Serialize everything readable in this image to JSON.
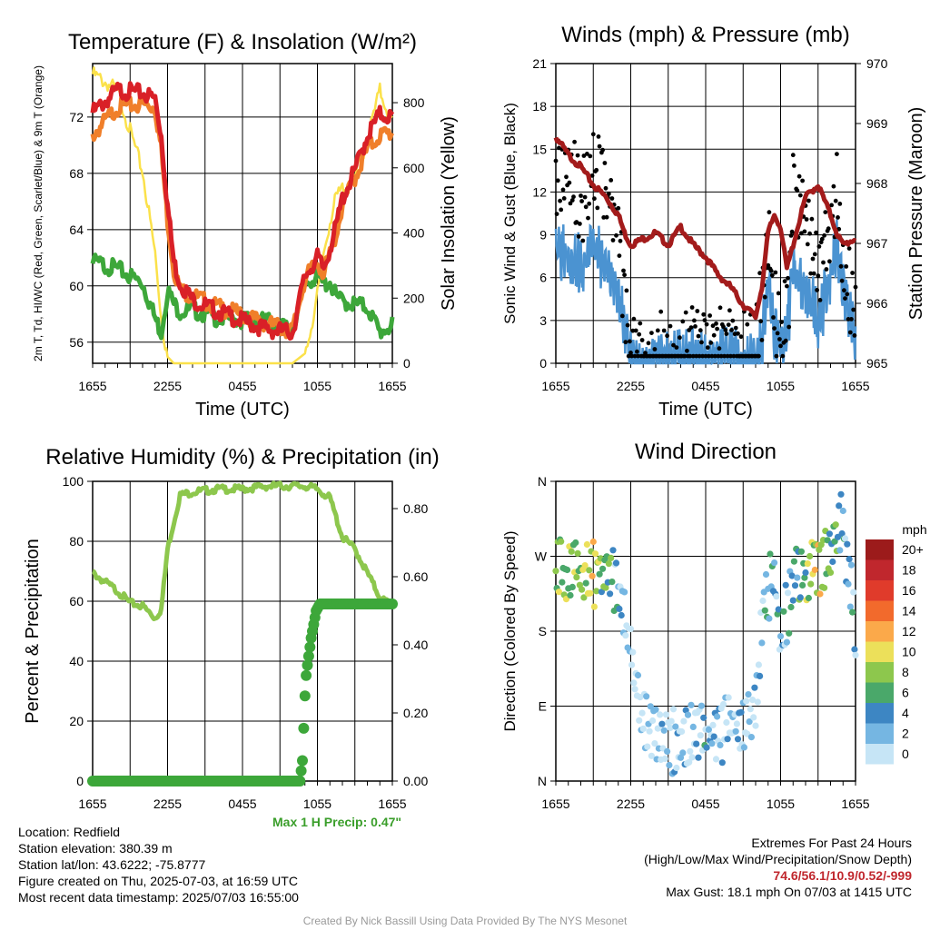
{
  "chart_data": [
    {
      "type": "line",
      "id": "temperature",
      "title": "Temperature (F) & Insolation (W/m²)",
      "xlabel": "Time (UTC)",
      "ylabel_left": "2m T, Td, HI/WC (Red, Green, Scarlet/Blue) & 9m T (Orange)",
      "ylabel_right": "Solar Insolation (Yellow)",
      "x_ticks": [
        "1655",
        "2255",
        "0455",
        "1055",
        "1655"
      ],
      "ylim_left": [
        54.5,
        75.8
      ],
      "yticks_left": [
        56,
        60,
        64,
        68,
        72
      ],
      "ylim_right": [
        0,
        920
      ],
      "yticks_right": [
        0,
        200,
        400,
        600,
        800
      ],
      "x_hours": [
        0,
        2,
        4,
        5,
        5.5,
        6,
        6.5,
        7,
        8,
        10,
        12,
        14,
        16,
        17,
        18,
        18.5,
        19,
        19.5,
        20,
        21,
        22,
        23,
        24
      ],
      "series": [
        {
          "name": "2m T",
          "color": "#d92027",
          "axis": "left",
          "values": [
            72.6,
            74.2,
            74.0,
            73.6,
            71.0,
            66.0,
            62.0,
            60.5,
            59.3,
            58.5,
            57.8,
            57.2,
            57.0,
            61.0,
            62.3,
            61.5,
            63.0,
            64.5,
            66.5,
            68.5,
            71.0,
            72.5,
            72.3
          ]
        },
        {
          "name": "9m T",
          "color": "#f07f2a",
          "axis": "left",
          "values": [
            71.0,
            73.0,
            73.2,
            73.0,
            70.0,
            65.0,
            61.5,
            60.0,
            59.6,
            58.8,
            58.2,
            57.6,
            57.1,
            60.8,
            62.0,
            61.2,
            62.5,
            64.0,
            66.0,
            68.0,
            70.0,
            71.0,
            71.2
          ]
        },
        {
          "name": "Td",
          "color": "#3da73a",
          "axis": "left",
          "values": [
            62.0,
            61.5,
            60.5,
            58.0,
            57.0,
            60.0,
            59.0,
            58.5,
            58.6,
            58.0,
            57.9,
            57.8,
            57.2,
            60.5,
            61.0,
            60.4,
            60.6,
            59.5,
            59.2,
            59.0,
            58.8,
            57.0,
            57.5
          ]
        },
        {
          "name": "Solar Insolation",
          "color": "#fbe14a",
          "axis": "right",
          "values": [
            900,
            850,
            600,
            350,
            150,
            20,
            0,
            0,
            0,
            0,
            0,
            0,
            0,
            30,
            220,
            350,
            450,
            520,
            550,
            580,
            700,
            850,
            750
          ]
        }
      ]
    },
    {
      "type": "scatter",
      "id": "winds",
      "title": "Winds (mph) & Pressure (mb)",
      "xlabel": "Time (UTC)",
      "ylabel_left": "Sonic Wind & Gust (Blue, Black)",
      "ylabel_right": "Station Pressure (Maroon)",
      "x_ticks": [
        "1655",
        "2255",
        "0455",
        "1055",
        "1655"
      ],
      "ylim_left": [
        0,
        21
      ],
      "yticks_left": [
        0,
        3,
        6,
        9,
        12,
        15,
        18,
        21
      ],
      "ylim_right": [
        965,
        970
      ],
      "yticks_right": [
        965,
        966,
        967,
        968,
        969,
        970
      ],
      "x_hours": [
        0,
        1,
        2,
        3,
        4,
        5,
        5.5,
        6,
        7,
        8,
        9,
        10,
        11,
        12,
        13,
        14,
        15,
        16,
        16.5,
        17,
        17.5,
        18,
        18.5,
        19,
        20,
        21,
        22,
        22.5,
        23,
        24
      ],
      "series": [
        {
          "name": "Sonic Wind",
          "color": "#4b93d1",
          "axis": "left",
          "style": "line",
          "values": [
            8.5,
            9.0,
            8.0,
            9.5,
            7.5,
            6.0,
            3.5,
            1.5,
            1.0,
            0.8,
            1.2,
            1.5,
            1.8,
            1.2,
            1.4,
            1.6,
            1.0,
            1.5,
            2.5,
            7.0,
            3.0,
            2.5,
            2.8,
            8.0,
            6.5,
            4.0,
            7.0,
            9.0,
            6.0,
            3.0
          ]
        },
        {
          "name": "Gust",
          "color": "#000000",
          "axis": "left",
          "style": "points",
          "values": [
            14.0,
            16.5,
            13.0,
            15.0,
            13.5,
            11.0,
            5.0,
            2.0,
            1.5,
            1.8,
            2.5,
            2.2,
            2.8,
            1.8,
            2.5,
            2.6,
            2.0,
            2.8,
            6.0,
            11.5,
            5.5,
            4.0,
            4.5,
            13.0,
            11.0,
            7.0,
            11.5,
            14.5,
            8.0,
            6.0
          ]
        },
        {
          "name": "Station Pressure",
          "color": "#a31b1b",
          "axis": "right",
          "style": "line",
          "values": [
            968.8,
            968.5,
            968.3,
            968.0,
            967.8,
            967.5,
            967.2,
            967.0,
            967.1,
            967.2,
            967.0,
            967.3,
            967.0,
            966.8,
            966.5,
            966.3,
            966.0,
            965.8,
            966.3,
            967.2,
            967.5,
            967.3,
            966.6,
            967.0,
            967.8,
            968.0,
            967.5,
            967.2,
            967.0,
            967.1
          ]
        }
      ]
    },
    {
      "type": "line",
      "id": "humidity",
      "title": "Relative Humidity (%) & Precipitation (in)",
      "xlabel": "",
      "ylabel_left": "Percent & Precipitation",
      "x_ticks": [
        "1655",
        "2255",
        "0455",
        "1055",
        "1655"
      ],
      "ylim_left": [
        0,
        100
      ],
      "yticks_left": [
        0,
        20,
        40,
        60,
        80,
        100
      ],
      "ylim_right": [
        0,
        0.88
      ],
      "yticks_right": [
        "0.00",
        "0.20",
        "0.40",
        "0.60",
        "0.80"
      ],
      "x_hours": [
        0,
        1,
        2,
        3,
        4,
        5,
        5.5,
        6,
        7,
        8,
        10,
        12,
        14,
        16,
        17,
        18,
        19,
        20,
        21,
        22,
        23,
        24
      ],
      "series": [
        {
          "name": "Relative Humidity",
          "color": "#8dc74d",
          "axis": "left",
          "values": [
            70,
            67,
            64,
            60,
            59,
            55,
            58,
            78,
            96,
            97,
            98,
            98,
            99,
            99,
            99,
            98,
            95,
            82,
            78,
            70,
            62,
            59
          ]
        },
        {
          "name": "Precipitation",
          "color": "#3da73a",
          "axis": "right",
          "precip_x": [
            0,
            2,
            4,
            6,
            8,
            10,
            12,
            14,
            16.6,
            16.8,
            17.0,
            17.1,
            17.2,
            17.35,
            17.5,
            17.7,
            17.9,
            18.2,
            20,
            22,
            24
          ],
          "precip_y": [
            0,
            0,
            0,
            0,
            0,
            0,
            0,
            0,
            0,
            0.06,
            0.25,
            0.31,
            0.34,
            0.38,
            0.42,
            0.46,
            0.5,
            0.52,
            0.52,
            0.52,
            0.52
          ]
        }
      ],
      "annotation": "Max 1 H Precip: 0.47\""
    },
    {
      "type": "scatter",
      "id": "direction",
      "title": "Wind Direction",
      "ylabel_left": "Direction (Colored By Speed)",
      "x_ticks": [
        "1655",
        "2255",
        "0455",
        "1055",
        "1655"
      ],
      "ylim_left": [
        0,
        360
      ],
      "y_tick_labels": [
        "N",
        "E",
        "S",
        "W",
        "N"
      ],
      "colorbar": {
        "unit": "mph",
        "labels": [
          "20+",
          "18",
          "16",
          "14",
          "12",
          "10",
          "8",
          "6",
          "4",
          "2",
          "0"
        ],
        "colors": [
          "#9c1b1b",
          "#c0272d",
          "#e03b2b",
          "#f26a2c",
          "#fba94a",
          "#ece05a",
          "#8dc74d",
          "#4aa86a",
          "#3d86c3",
          "#75b6e2",
          "#c6e5f6"
        ]
      },
      "x_hours": [
        0,
        1,
        2,
        3,
        4,
        4.5,
        5,
        5.5,
        6,
        6.5,
        7,
        8,
        9,
        10,
        11,
        12,
        13,
        14,
        15,
        16,
        16.5,
        17,
        17.5,
        18,
        19,
        20,
        21,
        22,
        23,
        24
      ],
      "directions": [
        270,
        272,
        275,
        268,
        270,
        262,
        240,
        210,
        170,
        130,
        90,
        70,
        65,
        75,
        80,
        72,
        78,
        82,
        88,
        110,
        200,
        250,
        265,
        180,
        265,
        270,
        275,
        300,
        330,
        200
      ],
      "speeds": [
        8,
        10,
        9,
        11,
        8,
        6,
        4,
        3,
        2,
        1,
        1,
        2,
        3,
        2,
        3,
        4,
        2,
        3,
        2,
        2,
        4,
        6,
        5,
        3,
        6,
        8,
        11,
        8,
        5,
        4
      ]
    }
  ],
  "info_left": {
    "location": "Location: Redfield",
    "elevation": "Station elevation: 380.39 m",
    "latlon": "Station lat/lon: 43.6222; -75.8777",
    "created": "Figure created on Thu, 2025-07-03, at 16:59 UTC",
    "recent": "Most recent data timestamp: 2025/07/03 16:55:00"
  },
  "info_right": {
    "extremes_title": "Extremes For Past 24 Hours",
    "extremes_sub": "(High/Low/Max Wind/Precipitation/Snow Depth)",
    "extremes_values": "74.6/56.1/10.9/0.52/-999",
    "max_gust": "Max Gust: 18.1 mph On 07/03 at 1415 UTC"
  },
  "credit": "Created By Nick Bassill Using Data Provided By The NYS Mesonet"
}
